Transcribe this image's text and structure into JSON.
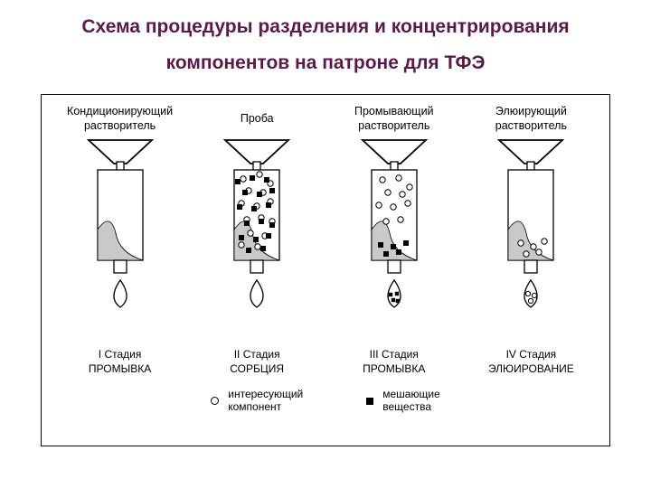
{
  "title": {
    "line1": "Схема процедуры разделения и концентрирования",
    "line2": "компонентов на патроне для ТФЭ",
    "color": "#5a1a4a",
    "fontsize": 21
  },
  "diagram": {
    "border_color": "#000000",
    "background": "#ffffff",
    "sorbent_fill": "#c9c9c9",
    "stroke": "#000000",
    "stroke_width": 1.3,
    "funnel_stroke_width": 1.8,
    "drop_stroke_width": 1.3
  },
  "legend": {
    "circle_label": "интересующий\nкомпонент",
    "square_label": "мешающие\nвещества"
  },
  "stages": [
    {
      "top_label": "Кондиционирующий\nрастворитель",
      "stage_line1": "I Стадия",
      "stage_line2": "ПРОМЫВКА",
      "circles": [],
      "squares": [],
      "drop_content": "empty"
    },
    {
      "top_label": "Проба",
      "stage_line1": "II Стадия",
      "stage_line2": "СОРБЦИЯ",
      "circles": [
        [
          40,
          45
        ],
        [
          58,
          40
        ],
        [
          70,
          50
        ],
        [
          46,
          58
        ],
        [
          62,
          60
        ],
        [
          38,
          72
        ],
        [
          55,
          75
        ],
        [
          70,
          70
        ],
        [
          44,
          90
        ],
        [
          60,
          88
        ],
        [
          72,
          92
        ],
        [
          48,
          105
        ],
        [
          64,
          108
        ],
        [
          38,
          118
        ],
        [
          56,
          120
        ]
      ],
      "squares": [
        [
          34,
          48
        ],
        [
          50,
          44
        ],
        [
          66,
          46
        ],
        [
          42,
          60
        ],
        [
          58,
          62
        ],
        [
          72,
          58
        ],
        [
          36,
          76
        ],
        [
          52,
          78
        ],
        [
          68,
          74
        ],
        [
          44,
          94
        ],
        [
          60,
          92
        ],
        [
          72,
          96
        ],
        [
          38,
          110
        ],
        [
          54,
          112
        ],
        [
          68,
          108
        ],
        [
          46,
          124
        ],
        [
          62,
          122
        ]
      ],
      "drop_content": "empty"
    },
    {
      "top_label": "Промывающий\nрастворитель",
      "stage_line1": "III Стадия",
      "stage_line2": "ПРОМЫВКА",
      "circles": [
        [
          42,
          46
        ],
        [
          60,
          44
        ],
        [
          72,
          54
        ],
        [
          48,
          60
        ],
        [
          64,
          62
        ],
        [
          38,
          74
        ],
        [
          54,
          76
        ],
        [
          70,
          72
        ],
        [
          46,
          92
        ],
        [
          62,
          90
        ]
      ],
      "squares": [
        [
          40,
          118
        ],
        [
          54,
          120
        ],
        [
          68,
          116
        ],
        [
          46,
          128
        ],
        [
          60,
          126
        ]
      ],
      "drop_content": "squares"
    },
    {
      "top_label": "Элюирующий\nрастворитель",
      "stage_line1": "IV Стадия",
      "stage_line2": "ЭЛЮИРОВАНИЕ",
      "circles": [
        [
          44,
          116
        ],
        [
          58,
          120
        ],
        [
          70,
          114
        ],
        [
          50,
          128
        ],
        [
          64,
          126
        ]
      ],
      "squares": [],
      "drop_content": "circles"
    }
  ]
}
